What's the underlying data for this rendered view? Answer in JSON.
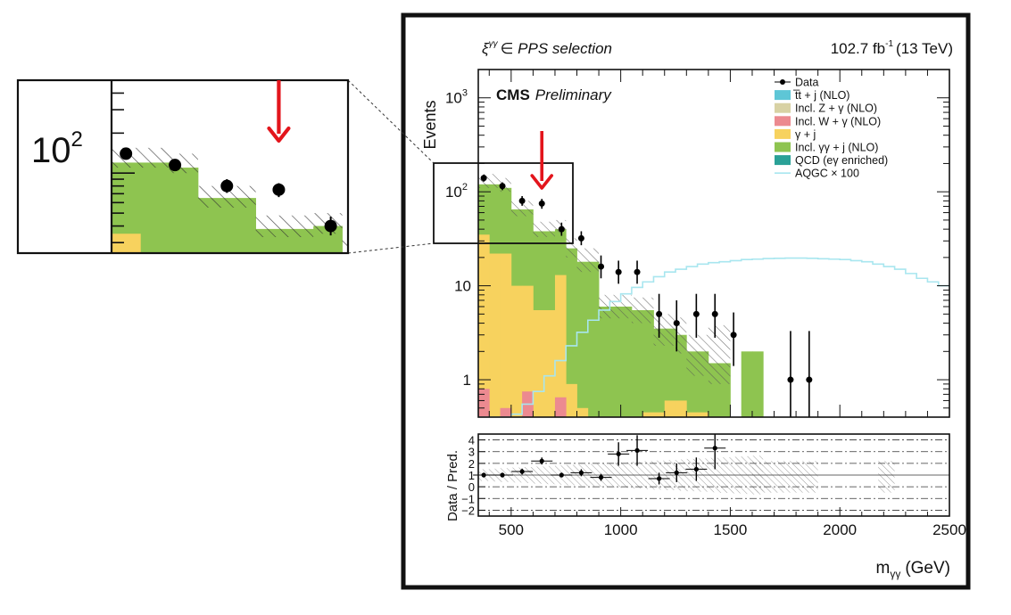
{
  "chart_data": {
    "type": "bar",
    "title": "CMS Preliminary",
    "header_left": "ξᵞᵞ ∈ PPS selection",
    "header_left_main": "ξ",
    "header_left_sup": "γγ",
    "header_left_tail": "∈ PPS selection",
    "header_right": "102.7 fb⁻¹ (13 TeV)",
    "header_right_main": "102.7 fb",
    "header_right_sup": "-1",
    "header_right_tail": "(13 TeV)",
    "title_bold": "CMS",
    "title_italic": "Preliminary",
    "xlabel": "mγγ (GeV)",
    "xlabel_main": "m",
    "xlabel_sub": "γγ",
    "xlabel_tail": "(GeV)",
    "ylabel": "Events",
    "ratio_ylabel": "Data / Pred.",
    "xlim": [
      350,
      2500
    ],
    "ylim": [
      0.4,
      2000
    ],
    "yscale": "log",
    "ratio_ylim": [
      -2.5,
      4.5
    ],
    "x_ticks": [
      500,
      1000,
      1500,
      2000,
      2500
    ],
    "x_tick_labels": [
      "500",
      "1000",
      "1500",
      "2000",
      "2500"
    ],
    "y_ticks": [
      1,
      10,
      100,
      1000
    ],
    "y_tick_labels": [
      "1",
      "10",
      "10²",
      "10³"
    ],
    "y_tick_base": "10",
    "y_tick_exps": [
      "2",
      "3"
    ],
    "ratio_y_ticks": [
      -2,
      -1,
      0,
      1,
      2,
      3,
      4
    ],
    "ratio_y_tick_labels": [
      "−2",
      "−1",
      "0",
      "1",
      "2",
      "3",
      "4"
    ],
    "legend": [
      {
        "label": "Data",
        "kind": "marker",
        "color": "#000000"
      },
      {
        "label": "t̅t + j (NLO)",
        "kind": "box",
        "color": "#5ec6d6"
      },
      {
        "label": "Incl. Z + γ (NLO)",
        "kind": "box",
        "color": "#d8d2a4"
      },
      {
        "label": "Incl. W + γ (NLO)",
        "kind": "box",
        "color": "#ec8a90"
      },
      {
        "label": "γ + j",
        "kind": "box",
        "color": "#f7d25e"
      },
      {
        "label": "Incl. γγ + j (NLO)",
        "kind": "box",
        "color": "#8ec450"
      },
      {
        "label": "QCD (eγ enriched)",
        "kind": "box",
        "color": "#2aa197"
      },
      {
        "label": "AQGC × 100",
        "kind": "line",
        "color": "#a8e6ef"
      }
    ],
    "bin_edges": [
      350,
      400,
      450,
      500,
      550,
      600,
      650,
      700,
      750,
      800,
      850,
      900,
      950,
      1000,
      1050,
      1100,
      1150,
      1200,
      1250,
      1300,
      1350,
      1400,
      1450,
      1500,
      1550,
      1600,
      1650
    ],
    "series": [
      {
        "name": "Incl. W + γ (NLO)",
        "color": "#ec8a90",
        "values": [
          0.8,
          0.4,
          0.5,
          0.4,
          0.75,
          0.4,
          0.4,
          0.65,
          0.4,
          0.4,
          0.4,
          0.4,
          0.4,
          0.4,
          0.4,
          0.4,
          0.4,
          0.4,
          0.4,
          0.4,
          0.4,
          0.4,
          0.4,
          0.4,
          0.4,
          0.4
        ]
      },
      {
        "name": "γ + j",
        "color": "#f7d25e",
        "values": [
          35,
          22,
          22,
          10,
          10,
          5.5,
          5.5,
          13,
          0.9,
          0.5,
          0.4,
          0.4,
          0.4,
          0.4,
          0.4,
          0.45,
          0.45,
          0.6,
          0.6,
          0.45,
          0.45,
          0.4,
          0.4,
          0.4,
          0.4,
          0.4
        ]
      },
      {
        "name": "Incl. γγ + j (NLO)",
        "color": "#8ec450",
        "values": [
          120,
          120,
          110,
          65,
          65,
          38,
          38,
          40,
          25,
          18,
          18,
          6,
          6,
          6,
          5.5,
          5.5,
          3.5,
          3.5,
          3.0,
          2.0,
          2.0,
          1.5,
          1.5,
          0.4,
          2.0,
          2.0
        ]
      }
    ],
    "uncertainty_band": {
      "low": [
        110,
        110,
        100,
        55,
        55,
        33,
        33,
        35,
        20,
        14,
        14,
        4.5,
        4.5,
        4.5,
        4.0,
        4.0,
        2.3,
        2.3,
        1.9,
        1.1,
        1.1,
        0.9,
        0.9,
        0.4,
        0.4,
        0.4
      ],
      "high": [
        155,
        155,
        140,
        80,
        80,
        48,
        48,
        50,
        32,
        25,
        25,
        8,
        8,
        8,
        7.5,
        7.5,
        5,
        5,
        4.6,
        3,
        3,
        3.8,
        3.8,
        0.4,
        0.4,
        0.4
      ]
    },
    "aqgc": {
      "x": [
        350,
        400,
        450,
        500,
        550,
        600,
        650,
        700,
        750,
        800,
        850,
        900,
        950,
        1000,
        1050,
        1100,
        1150,
        1200,
        1250,
        1300,
        1350,
        1400,
        1450,
        1500,
        1550,
        1600,
        1650,
        1700,
        1750,
        1800,
        1850,
        1900,
        1950,
        2000,
        2050,
        2100,
        2150,
        2200,
        2250,
        2300,
        2350,
        2400,
        2450,
        2500
      ],
      "y": [
        0.4,
        0.4,
        0.4,
        0.43,
        0.55,
        0.75,
        1.1,
        1.6,
        2.3,
        3.2,
        4.3,
        5.5,
        6.8,
        8.2,
        9.6,
        11,
        12.5,
        14,
        15,
        16,
        17,
        17.6,
        18,
        18.5,
        19,
        19.2,
        19.5,
        19.6,
        19.7,
        19.7,
        19.6,
        19.4,
        19.2,
        19,
        18.5,
        18,
        17,
        16,
        15,
        13.5,
        12,
        11,
        10,
        9.5
      ]
    },
    "data_points": [
      {
        "x": 375,
        "y": 140,
        "err_lo": 12,
        "err_hi": 12
      },
      {
        "x": 460,
        "y": 115,
        "err_lo": 11,
        "err_hi": 11
      },
      {
        "x": 550,
        "y": 80,
        "err_lo": 9,
        "err_hi": 10
      },
      {
        "x": 640,
        "y": 75,
        "err_lo": 9,
        "err_hi": 9
      },
      {
        "x": 730,
        "y": 40,
        "err_lo": 6,
        "err_hi": 7
      },
      {
        "x": 820,
        "y": 32,
        "err_lo": 5,
        "err_hi": 6
      },
      {
        "x": 910,
        "y": 16,
        "err_lo": 4,
        "err_hi": 5
      },
      {
        "x": 990,
        "y": 14,
        "err_lo": 3.5,
        "err_hi": 4.5
      },
      {
        "x": 1075,
        "y": 14,
        "err_lo": 3.5,
        "err_hi": 4.5
      },
      {
        "x": 1175,
        "y": 5,
        "err_lo": 2.2,
        "err_hi": 3.2
      },
      {
        "x": 1255,
        "y": 4,
        "err_lo": 2,
        "err_hi": 3
      },
      {
        "x": 1345,
        "y": 5,
        "err_lo": 2.2,
        "err_hi": 3.2
      },
      {
        "x": 1430,
        "y": 5,
        "err_lo": 2.2,
        "err_hi": 3.2
      },
      {
        "x": 1515,
        "y": 3,
        "err_lo": 1.6,
        "err_hi": 2.2
      },
      {
        "x": 1775,
        "y": 1,
        "err_lo": 0.6,
        "err_hi": 2.3
      },
      {
        "x": 1860,
        "y": 1,
        "err_lo": 0.6,
        "err_hi": 2.3
      }
    ],
    "ratio_points": [
      {
        "x": 375,
        "y": 1.0,
        "err": 0.2
      },
      {
        "x": 460,
        "y": 1.0,
        "err": 0.2
      },
      {
        "x": 550,
        "y": 1.3,
        "err": 0.25
      },
      {
        "x": 640,
        "y": 2.2,
        "err": 0.3
      },
      {
        "x": 730,
        "y": 1.0,
        "err": 0.2
      },
      {
        "x": 820,
        "y": 1.2,
        "err": 0.3
      },
      {
        "x": 910,
        "y": 0.8,
        "err": 0.3
      },
      {
        "x": 990,
        "y": 2.8,
        "err": 1.0
      },
      {
        "x": 1075,
        "y": 3.1,
        "err": 1.3
      },
      {
        "x": 1175,
        "y": 0.7,
        "err": 0.5
      },
      {
        "x": 1255,
        "y": 1.2,
        "err": 0.8
      },
      {
        "x": 1345,
        "y": 1.5,
        "err": 1.0
      },
      {
        "x": 1430,
        "y": 3.3,
        "err": 1.8
      }
    ],
    "annotations": [
      {
        "type": "arrow",
        "x": 640,
        "color": "#e3151c",
        "note": "excess bin"
      },
      {
        "type": "zoom_box",
        "x_range": [
          350,
          760
        ],
        "y_range": [
          25,
          500
        ],
        "inset_label": "10²"
      }
    ],
    "inset": {
      "label_base": "10",
      "label_exp": "2"
    }
  }
}
